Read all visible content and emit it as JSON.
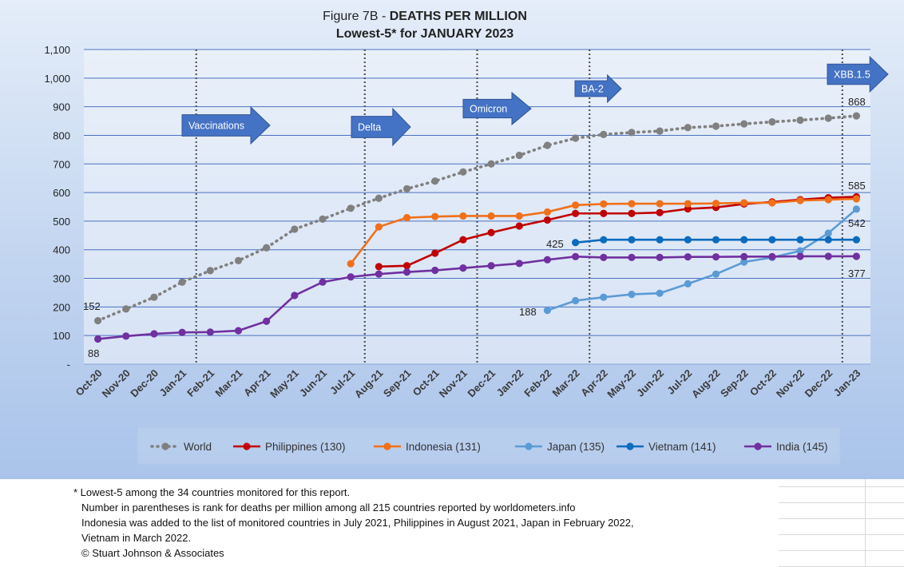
{
  "chart_data": {
    "type": "line",
    "title_prefix": "Figure 7B - ",
    "title_bold": "DEATHS PER MILLION",
    "subtitle": "Lowest-5* for JANUARY  2023",
    "categories": [
      "Oct-20",
      "Nov-20",
      "Dec-20",
      "Jan-21",
      "Feb-21",
      "Mar-21",
      "Apr-21",
      "May-21",
      "Jun-21",
      "Jul-21",
      "Aug-21",
      "Sep-21",
      "Oct-21",
      "Nov-21",
      "Dec-21",
      "Jan-22",
      "Feb-22",
      "Mar-22",
      "Apr-22",
      "May-22",
      "Jun-22",
      "Jul-22",
      "Aug-22",
      "Sep-22",
      "Oct-22",
      "Nov-22",
      "Dec-22",
      "Jan-23"
    ],
    "ylim": [
      0,
      1100
    ],
    "yticks": [
      "-",
      "100",
      "200",
      "300",
      "400",
      "500",
      "600",
      "700",
      "800",
      "900",
      "1,000",
      "1,100"
    ],
    "grid": true,
    "legend_position": "bottom",
    "series": [
      {
        "name": "World",
        "color": "#808080",
        "dashed": true,
        "values": [
          152,
          193,
          234,
          287,
          327,
          362,
          407,
          472,
          507,
          545,
          580,
          613,
          640,
          672,
          700,
          730,
          765,
          790,
          803,
          810,
          815,
          827,
          832,
          840,
          847,
          853,
          860,
          868
        ]
      },
      {
        "name": "Philippines (130)",
        "color": "#c00000",
        "values": [
          null,
          null,
          null,
          null,
          null,
          null,
          null,
          null,
          null,
          null,
          341,
          344,
          388,
          435,
          460,
          483,
          504,
          527,
          527,
          527,
          530,
          543,
          548,
          560,
          567,
          575,
          582,
          585
        ]
      },
      {
        "name": "Indonesia (131)",
        "color": "#f0701a",
        "values": [
          null,
          null,
          null,
          null,
          null,
          null,
          null,
          null,
          null,
          351,
          480,
          512,
          516,
          518,
          518,
          518,
          532,
          556,
          560,
          561,
          561,
          561,
          562,
          564,
          564,
          572,
          575,
          578
        ]
      },
      {
        "name": "Japan (135)",
        "color": "#5b9bd5",
        "values": [
          null,
          null,
          null,
          null,
          null,
          null,
          null,
          null,
          null,
          null,
          null,
          null,
          null,
          null,
          null,
          null,
          188,
          222,
          234,
          244,
          248,
          281,
          315,
          357,
          373,
          396,
          458,
          542
        ]
      },
      {
        "name": "Vietnam (141)",
        "color": "#0b6bbf",
        "values": [
          null,
          null,
          null,
          null,
          null,
          null,
          null,
          null,
          null,
          null,
          null,
          null,
          null,
          null,
          null,
          null,
          null,
          425,
          435,
          435,
          435,
          435,
          435,
          435,
          435,
          435,
          435,
          435
        ]
      },
      {
        "name": "India (145)",
        "color": "#7030a0",
        "values": [
          88,
          98,
          106,
          111,
          112,
          117,
          150,
          240,
          287,
          305,
          315,
          322,
          328,
          336,
          344,
          352,
          365,
          376,
          373,
          373,
          373,
          375,
          375,
          376,
          376,
          377,
          377,
          377
        ]
      }
    ],
    "data_labels": [
      {
        "text": "152"
      },
      {
        "text": "88"
      },
      {
        "text": "868"
      },
      {
        "text": "585"
      },
      {
        "text": "542"
      },
      {
        "text": "425"
      },
      {
        "text": "188"
      },
      {
        "text": "377"
      }
    ],
    "annotations": [
      {
        "text": "Vaccinations"
      },
      {
        "text": "Delta"
      },
      {
        "text": "Omicron"
      },
      {
        "text": "BA-2"
      },
      {
        "text": "XBB.1.5"
      }
    ],
    "vertical_markers": [
      "Jan-21",
      "Jul-21",
      "Nov-21",
      "Mar-22",
      "Dec-22"
    ]
  },
  "footnote": {
    "line1": "* Lowest-5 among the 34 countries monitored for this report.",
    "line2": "Number in parentheses is rank for deaths per million among all 215 countries reported by worldometers.info",
    "line3": "Indonesia was added to the list of monitored countries in  July 2021, Philippines in August 2021, Japan in February 2022,",
    "line4": "Vietnam in March 2022.",
    "line5": "© Stuart Johnson & Associates"
  },
  "colors": {
    "arrow_fill": "#4472c4",
    "gridline": "#4a72c0",
    "background_top": "#dde8f8",
    "background_bottom": "#aac4ea"
  }
}
